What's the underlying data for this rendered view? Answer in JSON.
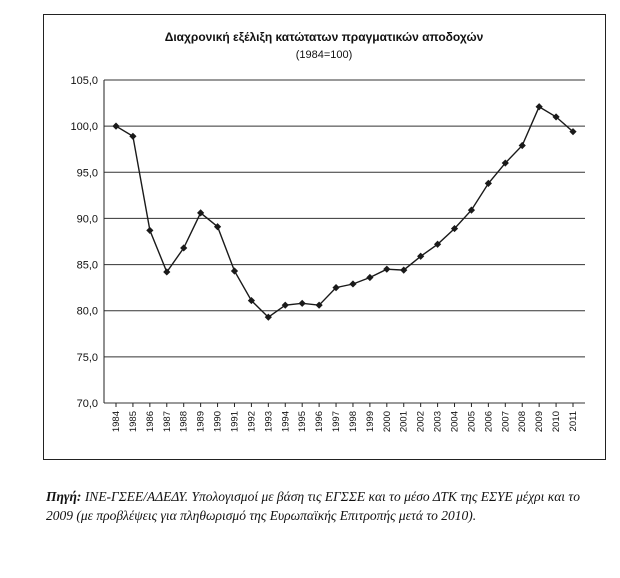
{
  "chart_data": {
    "type": "line",
    "title": "Διαχρονική εξέλιξη κατώτατων πραγματικών αποδοχών",
    "subtitle": "(1984=100)",
    "x": [
      "1984",
      "1985",
      "1986",
      "1987",
      "1988",
      "1989",
      "1990",
      "1991",
      "1992",
      "1993",
      "1994",
      "1995",
      "1996",
      "1997",
      "1998",
      "1999",
      "2000",
      "2001",
      "2002",
      "2003",
      "2004",
      "2005",
      "2006",
      "2007",
      "2008",
      "2009",
      "2010",
      "2011"
    ],
    "series": [
      {
        "values": [
          100.0,
          98.9,
          88.7,
          84.2,
          86.8,
          90.6,
          89.1,
          84.3,
          81.1,
          79.3,
          80.6,
          80.8,
          80.6,
          82.5,
          82.9,
          83.6,
          84.5,
          84.4,
          85.9,
          87.2,
          88.9,
          90.9,
          93.8,
          96.0,
          97.9,
          102.1,
          101.0,
          99.4
        ]
      }
    ],
    "yticks": [
      "105,0",
      "100,0",
      "95,0",
      "90,0",
      "85,0",
      "80,0",
      "75,0",
      "70,0"
    ],
    "ylim": [
      70,
      105
    ],
    "grid": "horizontal",
    "marker": "diamond",
    "line_color": "#1a1a1a"
  },
  "source_note": {
    "label": "Πηγή:",
    "text": " ΙΝΕ-ΓΣΕΕ/ΑΔΕΔΥ. Υπολογισμοί με βάση τις ΕΓΣΣΕ και το μέσο ΔΤΚ της ΕΣΥΕ μέχρι και το 2009 (με προβλέψεις για πληθωρισμό της Ευρωπαϊκής Επιτροπής μετά το 2010)."
  }
}
